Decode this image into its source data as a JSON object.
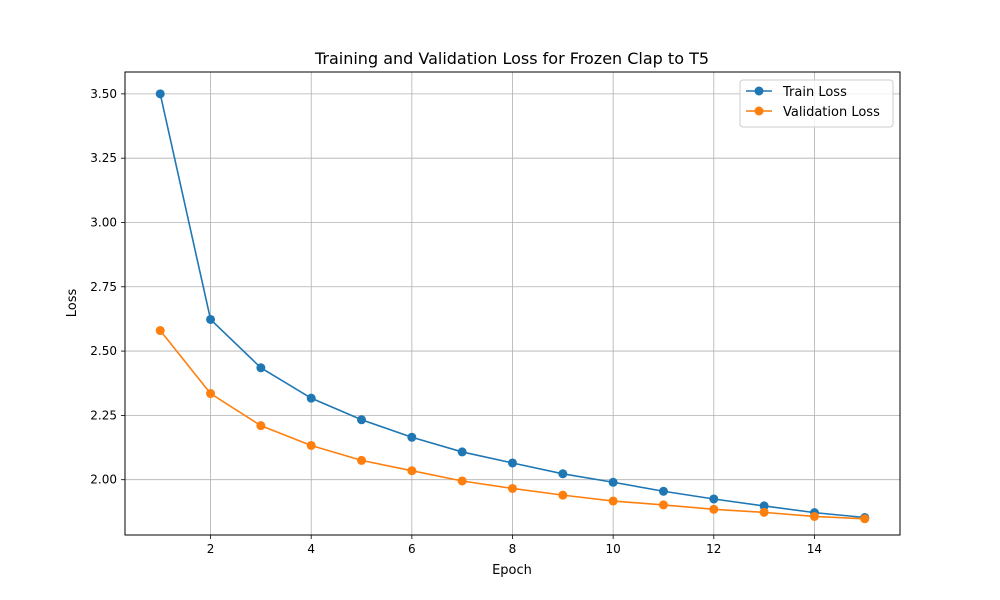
{
  "chart_data": {
    "type": "line",
    "title": "Training and Validation Loss for Frozen Clap to T5",
    "xlabel": "Epoch",
    "ylabel": "Loss",
    "x": [
      1,
      2,
      3,
      4,
      5,
      6,
      7,
      8,
      9,
      10,
      11,
      12,
      13,
      14,
      15
    ],
    "xlim": [
      0.3,
      15.7
    ],
    "ylim": [
      1.785,
      3.585
    ],
    "xticks": [
      2,
      4,
      6,
      8,
      10,
      12,
      14
    ],
    "yticks": [
      2.0,
      2.25,
      2.5,
      2.75,
      3.0,
      3.25,
      3.5
    ],
    "ytick_labels": [
      "2.00",
      "2.25",
      "2.50",
      "2.75",
      "3.00",
      "3.25",
      "3.50"
    ],
    "grid": true,
    "legend_position": "top-right",
    "series": [
      {
        "name": "Train Loss",
        "color": "#1f77b4",
        "values": [
          3.5,
          2.623,
          2.435,
          2.317,
          2.233,
          2.165,
          2.108,
          2.065,
          2.023,
          1.99,
          1.955,
          1.925,
          1.898,
          1.872,
          1.853
        ]
      },
      {
        "name": "Validation Loss",
        "color": "#ff7f0e",
        "values": [
          2.58,
          2.335,
          2.21,
          2.133,
          2.075,
          2.035,
          1.995,
          1.966,
          1.94,
          1.917,
          1.902,
          1.885,
          1.873,
          1.857,
          1.848
        ]
      }
    ]
  }
}
